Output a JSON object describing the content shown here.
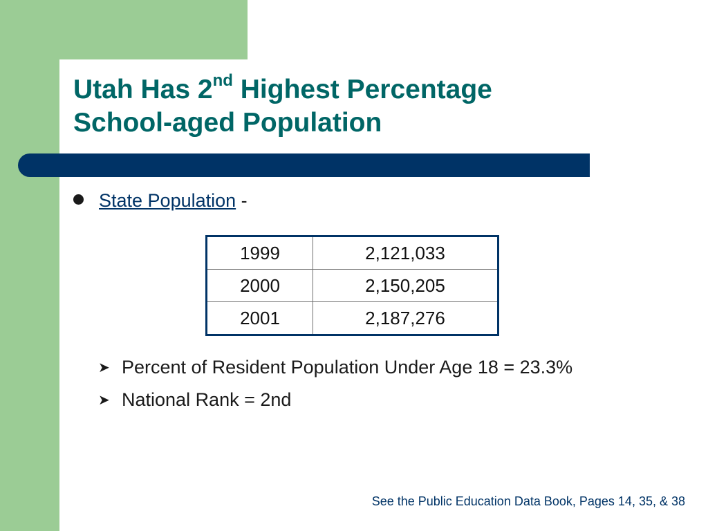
{
  "slide": {
    "title": {
      "line1_before": "Utah Has 2",
      "superscript": "nd",
      "line1_after": " Highest Percentage",
      "line2": "School-aged Population"
    },
    "bullet": {
      "link_text": "State Population",
      "suffix": " -"
    },
    "population_table": [
      {
        "year": "1999",
        "population": "2,121,033"
      },
      {
        "year": "2000",
        "population": "2,150,205"
      },
      {
        "year": "2001",
        "population": "2,187,276"
      }
    ],
    "sub_bullets": [
      "Percent of Resident Population Under Age 18 = 23.3%",
      "National Rank = 2nd"
    ],
    "footer": "See the Public Education Data Book, Pages 14, 35, & 38"
  },
  "colors": {
    "title": "#006666",
    "accent_bar": "#003366",
    "side_panel": "#9bcc95"
  }
}
